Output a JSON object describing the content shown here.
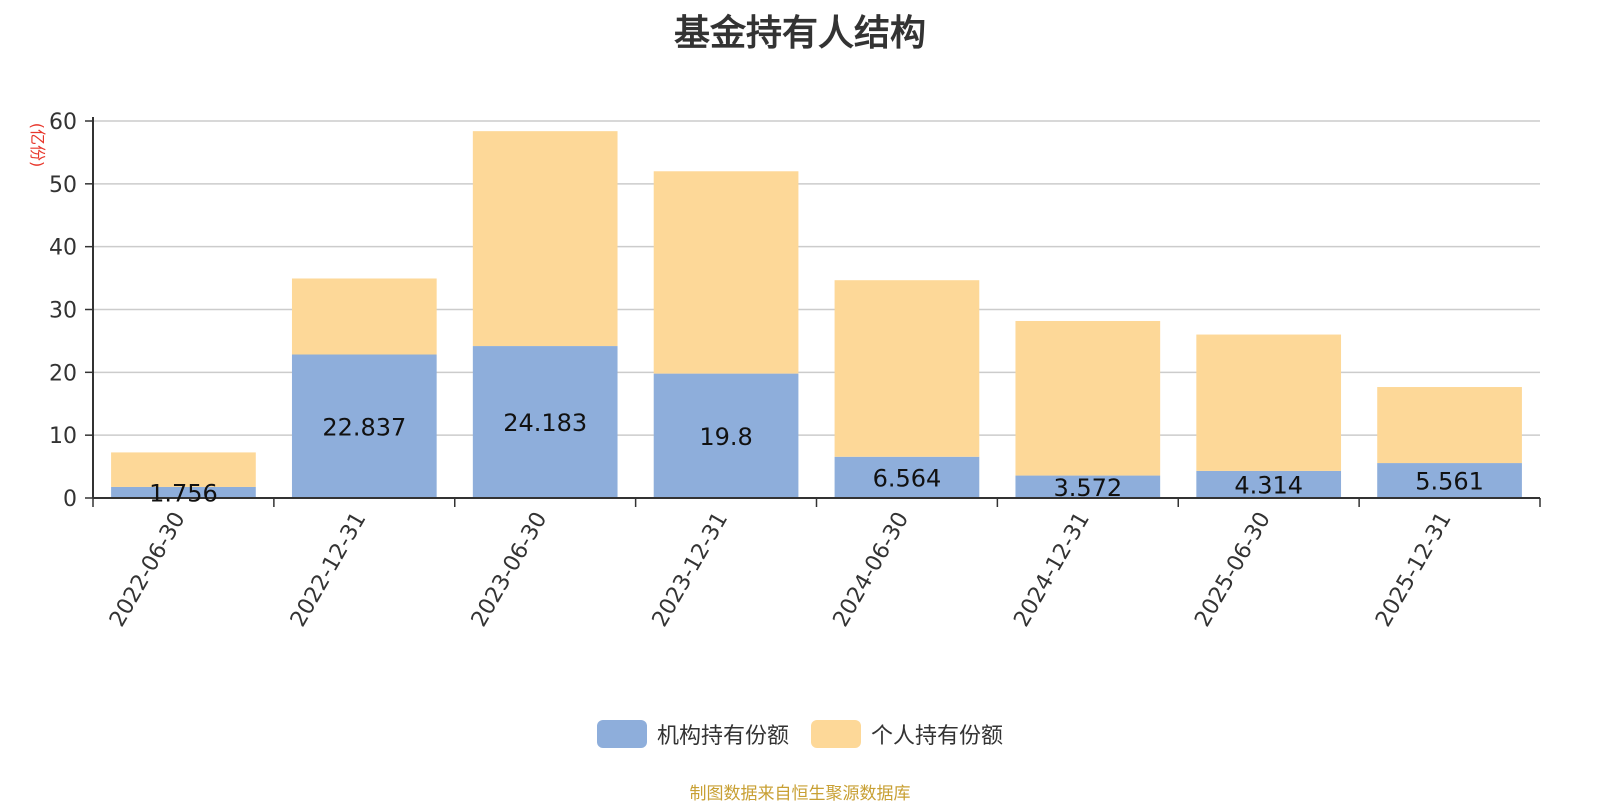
{
  "chart_data": {
    "type": "bar",
    "stacked": true,
    "title": "基金持有人结构",
    "ylabel": "(亿份)",
    "ylim": [
      0,
      60
    ],
    "yticks": [
      0,
      10,
      20,
      30,
      40,
      50,
      60
    ],
    "grid": true,
    "legend_position": "bottom",
    "categories": [
      "2022-06-30",
      "2022-12-31",
      "2023-06-30",
      "2023-12-31",
      "2024-06-30",
      "2024-12-31",
      "2025-06-30",
      "2025-12-31"
    ],
    "series": [
      {
        "name": "机构持有份额",
        "color": "#8eaedb",
        "values": [
          1.756,
          22.837,
          24.183,
          19.8,
          6.564,
          3.572,
          4.314,
          5.561
        ],
        "labels": [
          "1.756",
          "22.837",
          "24.183",
          "19.8",
          "6.564",
          "3.572",
          "4.314",
          "5.561"
        ]
      },
      {
        "name": "个人持有份额",
        "color": "#fdd898",
        "values": [
          5.5,
          12.1,
          34.2,
          32.2,
          28.1,
          24.6,
          21.7,
          12.1
        ]
      }
    ]
  },
  "source_note": "制图数据来自恒生聚源数据库",
  "colors": {
    "axis": "#333333",
    "grid": "#cccccc",
    "ylabel": "#e8372c",
    "source": "#c8a034"
  }
}
